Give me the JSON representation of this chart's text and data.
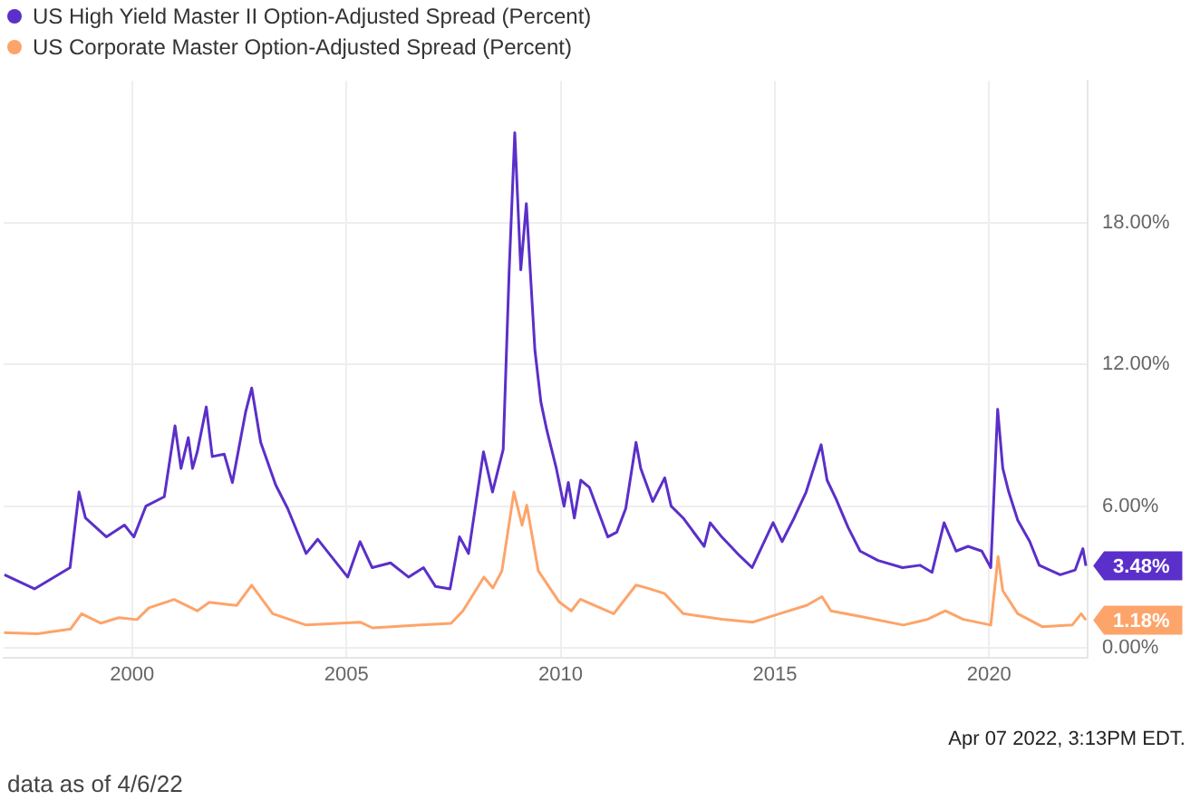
{
  "chart_data": {
    "type": "line",
    "legend": "top left",
    "grid": true,
    "marker": "none",
    "line_style": "solid",
    "xlim": [
      1997,
      2022.3
    ],
    "xticks": [
      2000,
      2005,
      2010,
      2015,
      2020
    ],
    "ylim": [
      -0.4,
      24
    ],
    "yticks": [
      {
        "value": 0,
        "label": "0.00%"
      },
      {
        "value": 6,
        "label": "6.00%"
      },
      {
        "value": 12,
        "label": "12.00%"
      },
      {
        "value": 18,
        "label": "18.00%"
      }
    ],
    "series": [
      {
        "name": "US High Yield Master II Option-Adjusted Spread (Percent)",
        "color": "#5b2fc9",
        "x": [
          1997.02,
          1997.72,
          1998.55,
          1998.76,
          1998.91,
          1999.4,
          1999.82,
          2000.04,
          2000.32,
          2000.75,
          2001.0,
          2001.14,
          2001.31,
          2001.41,
          2001.52,
          2001.73,
          2001.87,
          2002.15,
          2002.34,
          2002.65,
          2002.79,
          2003.0,
          2003.35,
          2003.63,
          2004.06,
          2004.33,
          2005.03,
          2005.32,
          2005.6,
          2006.03,
          2006.45,
          2006.8,
          2007.08,
          2007.42,
          2007.64,
          2007.85,
          2008.2,
          2008.41,
          2008.66,
          2008.8,
          2008.93,
          2009.07,
          2009.2,
          2009.4,
          2009.54,
          2009.68,
          2009.9,
          2010.08,
          2010.18,
          2010.32,
          2010.47,
          2010.67,
          2011.1,
          2011.31,
          2011.52,
          2011.76,
          2011.87,
          2012.15,
          2012.43,
          2012.58,
          2012.86,
          2013.35,
          2013.49,
          2013.76,
          2014.18,
          2014.47,
          2014.96,
          2015.17,
          2015.45,
          2015.73,
          2016.08,
          2016.22,
          2016.43,
          2016.71,
          2016.99,
          2017.41,
          2017.98,
          2018.39,
          2018.67,
          2018.95,
          2019.23,
          2019.51,
          2019.83,
          2020.04,
          2020.2,
          2020.32,
          2020.46,
          2020.67,
          2020.95,
          2021.17,
          2021.66,
          2022.01,
          2022.19,
          2022.26
        ],
        "values": [
          3.1,
          2.5,
          3.4,
          6.6,
          5.5,
          4.7,
          5.2,
          4.7,
          6.0,
          6.4,
          9.4,
          7.6,
          8.9,
          7.6,
          8.3,
          10.2,
          8.1,
          8.2,
          7.0,
          10.0,
          11.0,
          8.7,
          6.9,
          5.9,
          4.0,
          4.6,
          3.0,
          4.5,
          3.4,
          3.6,
          3.0,
          3.4,
          2.6,
          2.5,
          4.7,
          4.0,
          8.3,
          6.6,
          8.4,
          16.0,
          21.8,
          16.0,
          18.8,
          12.6,
          10.4,
          9.2,
          7.6,
          6.0,
          7.0,
          5.5,
          7.1,
          6.8,
          4.7,
          4.9,
          5.9,
          8.7,
          7.6,
          6.2,
          7.2,
          6.0,
          5.5,
          4.3,
          5.3,
          4.7,
          3.9,
          3.4,
          5.3,
          4.5,
          5.5,
          6.6,
          8.6,
          7.1,
          6.3,
          5.1,
          4.1,
          3.7,
          3.4,
          3.5,
          3.2,
          5.3,
          4.1,
          4.3,
          4.1,
          3.4,
          10.1,
          7.6,
          6.6,
          5.4,
          4.5,
          3.5,
          3.1,
          3.3,
          4.2,
          3.48
        ]
      },
      {
        "name": "US Corporate Master Option-Adjusted Spread (Percent)",
        "color": "#fda46a",
        "x": [
          1997.01,
          1997.79,
          1998.56,
          1998.82,
          1999.27,
          1999.69,
          2000.11,
          2000.39,
          2000.98,
          2001.52,
          2001.8,
          2002.44,
          2002.79,
          2003.28,
          2004.06,
          2005.32,
          2005.61,
          2006.73,
          2007.44,
          2007.72,
          2008.21,
          2008.42,
          2008.63,
          2008.91,
          2009.1,
          2009.21,
          2009.48,
          2009.97,
          2010.25,
          2010.46,
          2011.24,
          2011.76,
          2012.01,
          2012.43,
          2012.86,
          2013.77,
          2014.48,
          2015.11,
          2015.75,
          2016.1,
          2016.31,
          2017.01,
          2018.0,
          2018.56,
          2018.98,
          2019.4,
          2020.04,
          2020.21,
          2020.32,
          2020.67,
          2021.24,
          2021.94,
          2022.15,
          2022.26
        ],
        "values": [
          0.65,
          0.6,
          0.8,
          1.45,
          1.05,
          1.28,
          1.2,
          1.7,
          2.05,
          1.57,
          1.93,
          1.8,
          2.66,
          1.45,
          0.97,
          1.09,
          0.85,
          0.97,
          1.04,
          1.57,
          3.0,
          2.54,
          3.26,
          6.6,
          5.2,
          6.04,
          3.26,
          1.94,
          1.57,
          2.06,
          1.45,
          2.66,
          2.54,
          2.3,
          1.45,
          1.21,
          1.09,
          1.45,
          1.81,
          2.17,
          1.57,
          1.33,
          0.97,
          1.21,
          1.57,
          1.21,
          0.97,
          3.87,
          2.42,
          1.45,
          0.9,
          0.97,
          1.45,
          1.18
        ]
      }
    ],
    "annotations": [
      {
        "text": "3.48%",
        "x": 2022.26,
        "y": 3.48
      },
      {
        "text": "1.18%",
        "x": 2022.26,
        "y": 1.18
      },
      "Apr 07 2022, 3:13PM EDT.",
      "data as of 4/6/22"
    ]
  }
}
